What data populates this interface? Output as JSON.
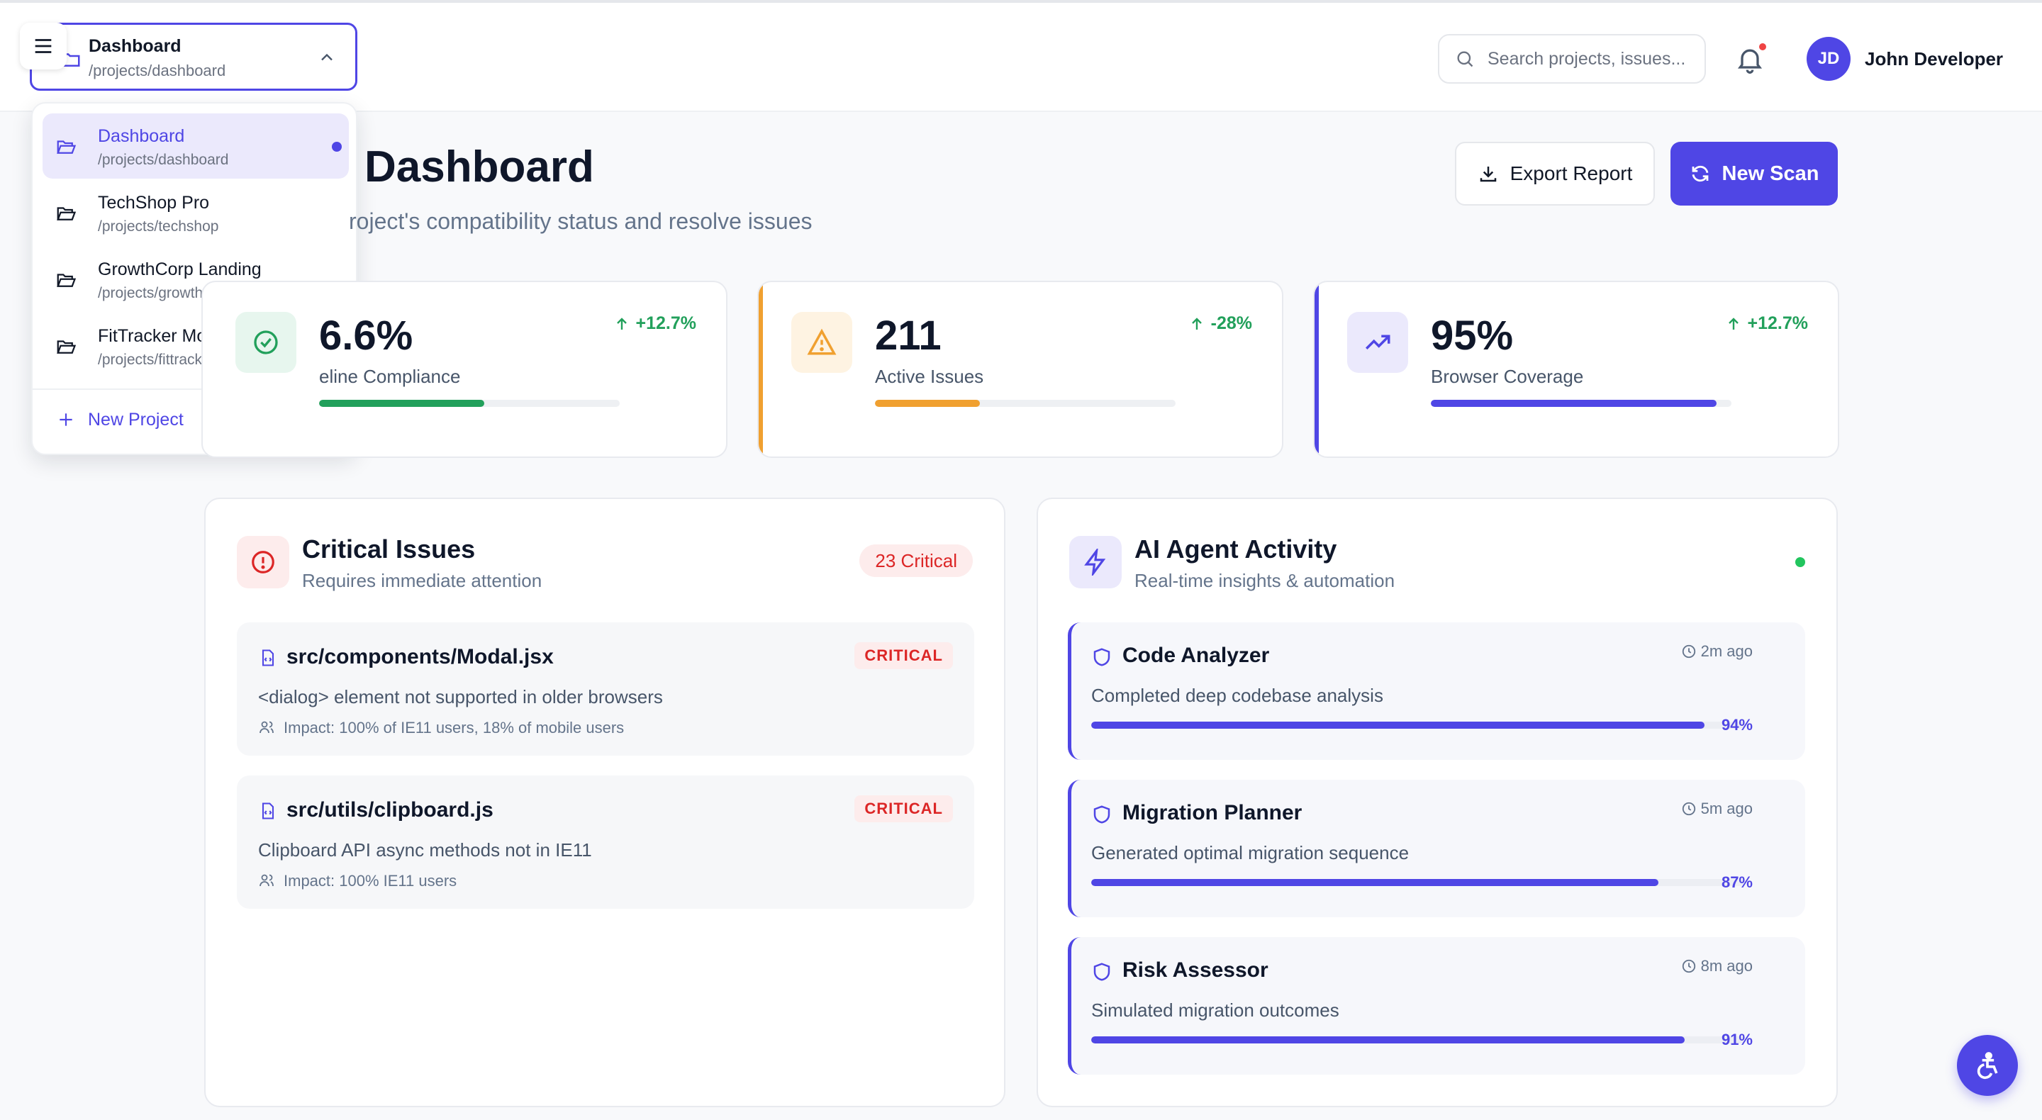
{
  "header": {
    "search_placeholder": "Search projects, issues...",
    "notification_dot_color": "#ef4444",
    "user": {
      "initials": "JD",
      "name": "John Developer"
    }
  },
  "project_selector": {
    "current_name": "Dashboard",
    "current_path": "/projects/dashboard",
    "items": [
      {
        "name": "Dashboard",
        "path": "/projects/dashboard",
        "active": true
      },
      {
        "name": "TechShop Pro",
        "path": "/projects/techshop",
        "active": false
      },
      {
        "name": "GrowthCorp Landing",
        "path": "/projects/growthcorp",
        "active": false
      },
      {
        "name": "FitTracker Mobile",
        "path": "/projects/fittracker",
        "active": false
      }
    ],
    "new_project_label": "New Project"
  },
  "page": {
    "title": "Dashboard",
    "subtitle": "roject's compatibility status and resolve issues",
    "export_label": "Export Report",
    "scan_label": "New Scan"
  },
  "stats": [
    {
      "value": "6.6%",
      "label": "eline Compliance",
      "trend": "+12.7%",
      "progress": 0.55,
      "color": "#22a05b"
    },
    {
      "value": "211",
      "label": "Active Issues",
      "trend": "-28%",
      "progress": 0.35,
      "color": "#f0a030"
    },
    {
      "value": "95%",
      "label": "Browser Coverage",
      "trend": "+12.7%",
      "progress": 0.95,
      "color": "#4f46e5"
    }
  ],
  "critical": {
    "title": "Critical Issues",
    "subtitle": "Requires immediate attention",
    "badge": "23 Critical",
    "issues": [
      {
        "file": "src/components/Modal.jsx",
        "severity": "CRITICAL",
        "description": "<dialog> element not supported in older browsers",
        "impact": "Impact: 100% of IE11 users, 18% of mobile users"
      },
      {
        "file": "src/utils/clipboard.js",
        "severity": "CRITICAL",
        "description": "Clipboard API async methods not in IE11",
        "impact": "Impact: 100% IE11 users"
      }
    ]
  },
  "agents": {
    "title": "AI Agent Activity",
    "subtitle": "Real-time insights & automation",
    "items": [
      {
        "name": "Code Analyzer",
        "time": "2m ago",
        "description": "Completed deep codebase analysis",
        "percent": "94%",
        "progress": 0.94
      },
      {
        "name": "Migration Planner",
        "time": "5m ago",
        "description": "Generated optimal migration sequence",
        "percent": "87%",
        "progress": 0.87
      },
      {
        "name": "Risk Assessor",
        "time": "8m ago",
        "description": "Simulated migration outcomes",
        "percent": "91%",
        "progress": 0.91
      }
    ]
  },
  "colors": {
    "accent": "#4f46e5",
    "danger": "#dc2626",
    "success": "#22a05b",
    "warning": "#f0a030"
  }
}
